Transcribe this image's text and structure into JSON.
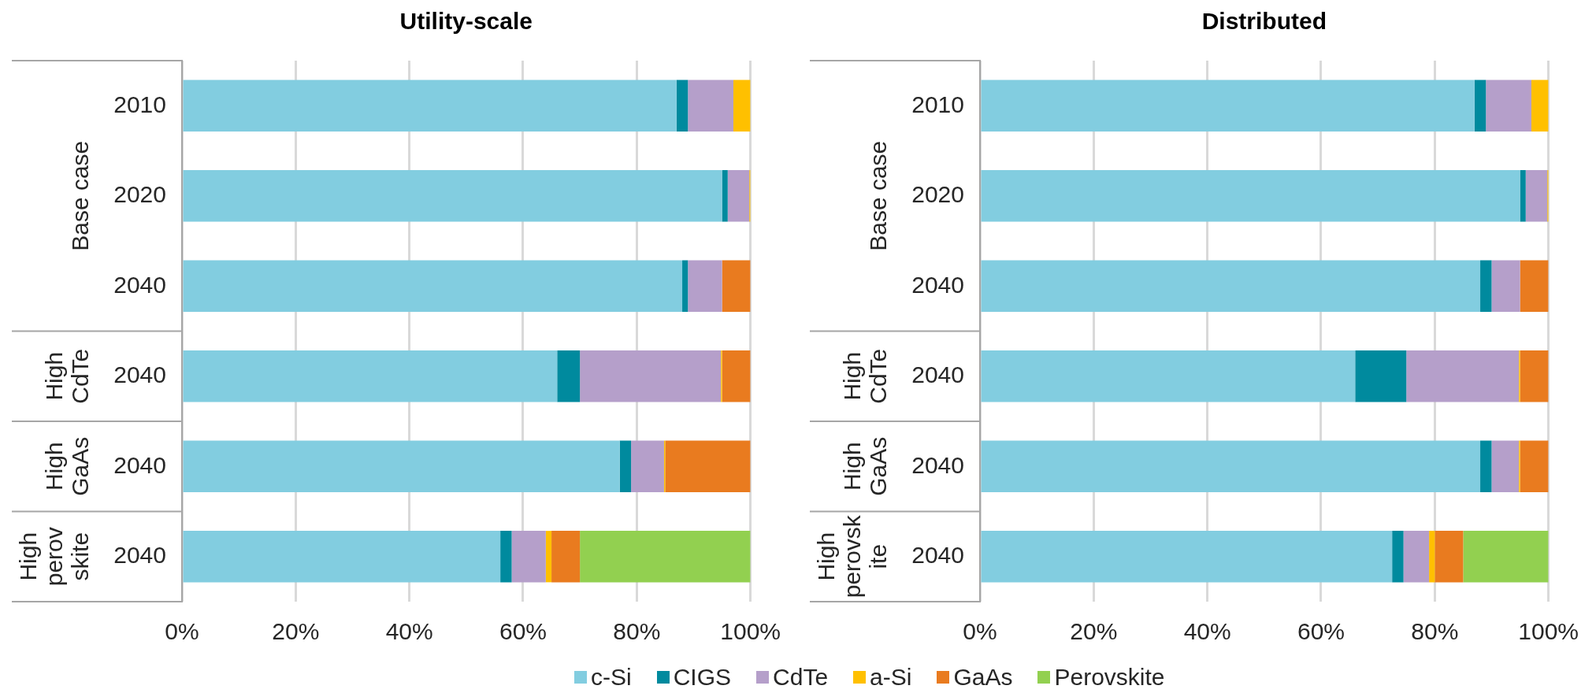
{
  "chart_data": [
    {
      "type": "bar",
      "title": "Utility-scale",
      "orientation": "horizontal",
      "stacked": true,
      "categories": [
        "2010",
        "2020",
        "2040",
        "2040",
        "2040",
        "2040"
      ],
      "annotations": [
        "Base case",
        "High CdTe",
        "High GaAs",
        "High perovskite"
      ],
      "series": [
        {
          "color": "#82cde0",
          "values": [
            87,
            95,
            88,
            66,
            77,
            56
          ]
        },
        {
          "color": "#008a9e",
          "values": [
            2,
            1,
            1,
            4,
            2,
            2
          ]
        },
        {
          "color": "#b59fca",
          "values": [
            8,
            3.8,
            6,
            24.8,
            5.8,
            6
          ]
        },
        {
          "color": "#ffc000",
          "values": [
            3,
            0.2,
            null,
            0.2,
            0.2,
            1
          ]
        },
        {
          "color": "#e97b1f",
          "values": [
            null,
            null,
            5,
            5,
            15,
            5
          ]
        },
        {
          "color": "#92d050",
          "values": [
            null,
            null,
            null,
            null,
            null,
            30
          ]
        }
      ],
      "xlim": [
        0,
        100
      ],
      "xticks": [
        {
          "value": 0,
          "label": "0%"
        },
        {
          "value": 20,
          "label": "20%"
        },
        {
          "value": 40,
          "label": "40%"
        },
        {
          "value": 60,
          "label": "60%"
        },
        {
          "value": 80,
          "label": "80%"
        },
        {
          "value": 100,
          "label": "100%"
        }
      ],
      "grid": "x"
    },
    {
      "type": "bar",
      "title": "Distributed",
      "orientation": "horizontal",
      "stacked": true,
      "categories": [
        "2010",
        "2020",
        "2040",
        "2040",
        "2040",
        "2040"
      ],
      "annotations": [
        "Base case",
        "High CdTe",
        "High GaAs",
        "High perovskite"
      ],
      "series": [
        {
          "name": "c-Si",
          "color": "#82cde0",
          "values": [
            87,
            95,
            88,
            66,
            88,
            72.5
          ]
        },
        {
          "name": "CIGS",
          "color": "#008a9e",
          "values": [
            2,
            1,
            2,
            9,
            2,
            2
          ]
        },
        {
          "name": "CdTe",
          "color": "#b59fca",
          "values": [
            8,
            3.8,
            5,
            19.8,
            4.8,
            4.5
          ]
        },
        {
          "name": "a-Si",
          "color": "#ffc000",
          "values": [
            3,
            0.2,
            null,
            0.2,
            0.2,
            1
          ]
        },
        {
          "name": "GaAs",
          "color": "#e97b1f",
          "values": [
            null,
            null,
            5,
            5,
            5,
            5
          ]
        },
        {
          "name": "Perovskite",
          "color": "#92d050",
          "values": [
            null,
            null,
            null,
            null,
            null,
            15
          ]
        }
      ],
      "xlim": [
        0,
        100
      ],
      "xticks": [
        {
          "value": 0,
          "label": "0%"
        },
        {
          "value": 20,
          "label": "20%"
        },
        {
          "value": 40,
          "label": "40%"
        },
        {
          "value": 60,
          "label": "60%"
        },
        {
          "value": 80,
          "label": "80%"
        },
        {
          "value": 100,
          "label": "100%"
        }
      ],
      "grid": "x",
      "legend": "bottom"
    }
  ]
}
